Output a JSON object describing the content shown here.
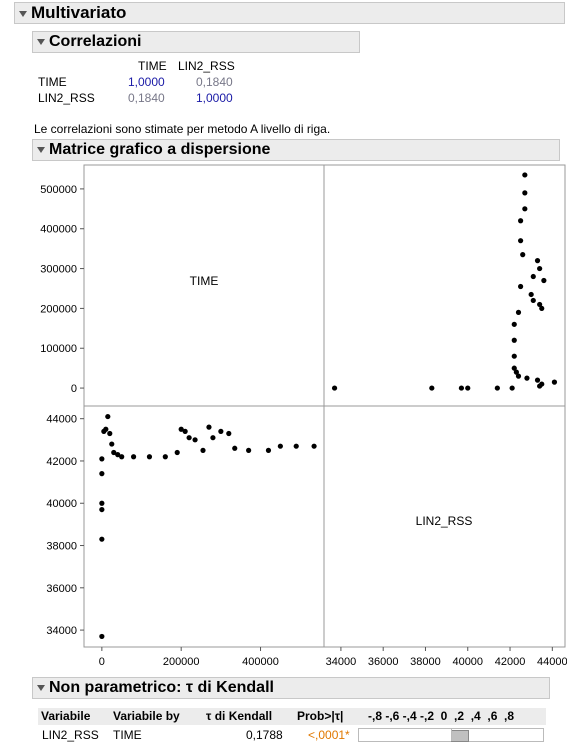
{
  "sections": {
    "multivariate": "Multivariato",
    "correlations": "Correlazioni",
    "scatter_matrix": "Matrice grafico a dispersione",
    "kendall": "Non parametrico: τ di Kendall"
  },
  "correlations": {
    "columns": [
      "TIME",
      "LIN2_RSS"
    ],
    "rows": [
      {
        "label": "TIME",
        "values": [
          "1,0000",
          "0,1840"
        ]
      },
      {
        "label": "LIN2_RSS",
        "values": [
          "0,1840",
          "1,0000"
        ]
      }
    ],
    "note": "Le correlazioni sono stimate per metodo A livello di riga."
  },
  "chart_data": {
    "type": "scatter",
    "variables": [
      "TIME",
      "LIN2_RSS"
    ],
    "time_ticks": [
      "0",
      "100000",
      "200000",
      "300000",
      "400000",
      "500000"
    ],
    "time_ticks_bottom": [
      "0",
      "200000",
      "400000"
    ],
    "rss_ticks": [
      "34000",
      "36000",
      "38000",
      "40000",
      "42000",
      "44000"
    ],
    "rss_ticks_bottom": [
      "34000",
      "36000",
      "38000",
      "40000",
      "42000",
      "44000"
    ],
    "time_range": [
      -45000,
      560000
    ],
    "rss_range": [
      33200,
      44600
    ],
    "points_time_vs_rss": [
      [
        0,
        33700
      ],
      [
        0,
        38300
      ],
      [
        0,
        39700
      ],
      [
        0,
        40000
      ],
      [
        0,
        41400
      ],
      [
        0,
        42100
      ],
      [
        5000,
        43400
      ],
      [
        10000,
        43500
      ],
      [
        15000,
        44100
      ],
      [
        20000,
        43300
      ],
      [
        25000,
        42800
      ],
      [
        30000,
        42400
      ],
      [
        40000,
        42300
      ],
      [
        50000,
        42200
      ],
      [
        80000,
        42200
      ],
      [
        120000,
        42200
      ],
      [
        160000,
        42200
      ],
      [
        190000,
        42400
      ],
      [
        200000,
        43500
      ],
      [
        210000,
        43400
      ],
      [
        220000,
        43100
      ],
      [
        235000,
        43000
      ],
      [
        255000,
        42500
      ],
      [
        270000,
        43600
      ],
      [
        280000,
        43100
      ],
      [
        300000,
        43400
      ],
      [
        320000,
        43300
      ],
      [
        335000,
        42600
      ],
      [
        370000,
        42500
      ],
      [
        420000,
        42500
      ],
      [
        450000,
        42700
      ],
      [
        490000,
        42700
      ],
      [
        535000,
        42700
      ]
    ]
  },
  "kendall": {
    "headers": [
      "Variabile",
      "Variabile by",
      "τ di Kendall",
      "Prob>|τ|",
      "-,8 -,6 -,4 -,2  0  ,2  ,4  ,6  ,8"
    ],
    "row": {
      "variable": "LIN2_RSS",
      "by": "TIME",
      "tau": "0,1788",
      "prob": "<,0001*"
    },
    "tau_value": 0.1788,
    "prob_color": "#e07800"
  }
}
